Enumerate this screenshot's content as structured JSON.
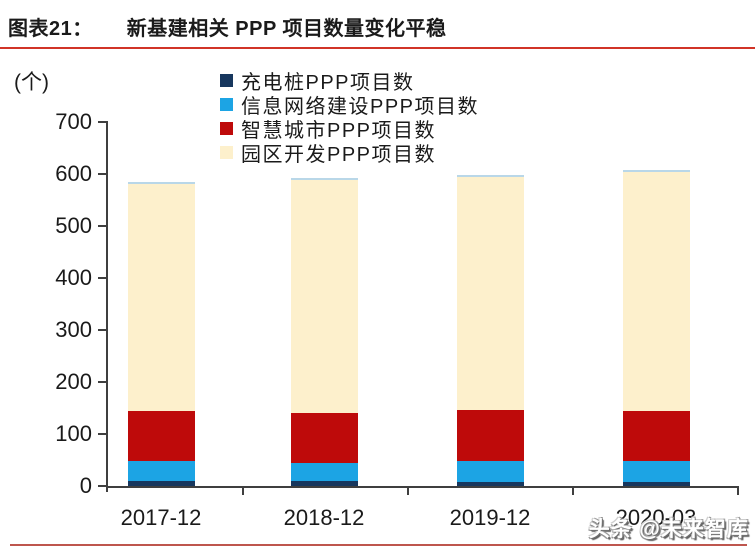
{
  "header": {
    "figure_label": "图表21：",
    "title": "新基建相关 PPP 项目数量变化平稳"
  },
  "colors": {
    "title_rule": "#d13427",
    "bottom_rule": "#be564e",
    "axis": "#3f3f3f",
    "text": "#1a1a1a",
    "bar_top_cap": "#b9d7e8"
  },
  "watermark": "头条 @未来智库",
  "chart_data": {
    "type": "bar",
    "stacked": true,
    "title": "新基建相关 PPP 项目数量变化平稳",
    "unit_label": "(个)",
    "xlabel": "",
    "ylabel": "(个)",
    "categories": [
      "2017-12",
      "2018-12",
      "2019-12",
      "2020-03"
    ],
    "series": [
      {
        "name": "充电桩PPP项目数",
        "color": "#17375e",
        "values": [
          10,
          9,
          8,
          8
        ]
      },
      {
        "name": "信息网络建设PPP项目数",
        "color": "#1ca4e4",
        "values": [
          38,
          36,
          40,
          40
        ]
      },
      {
        "name": "智慧城市PPP项目数",
        "color": "#be0a0a",
        "values": [
          96,
          95,
          98,
          96
        ]
      },
      {
        "name": "园区开发PPP项目数",
        "color": "#fdf0cc",
        "values": [
          437,
          449,
          449,
          460
        ]
      }
    ],
    "totals": [
      581,
      589,
      595,
      604
    ],
    "ylim": [
      0,
      700
    ],
    "ytick_step": 100,
    "grid": false,
    "legend_position": "top-center"
  }
}
